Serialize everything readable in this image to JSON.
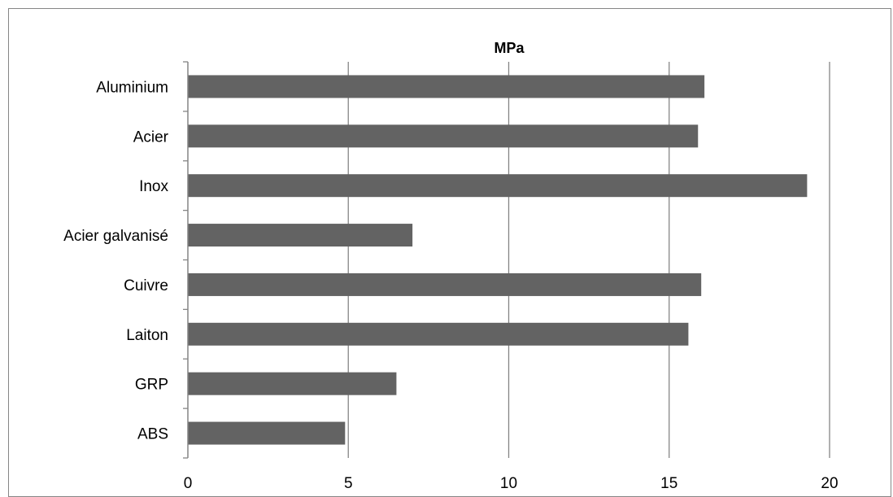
{
  "chart_data": {
    "type": "bar",
    "orientation": "horizontal",
    "title": "MPa",
    "xlabel": "",
    "ylabel": "",
    "categories": [
      "Aluminium",
      "Acier",
      "Inox",
      "Acier galvanisé",
      "Cuivre",
      "Laiton",
      "GRP",
      "ABS"
    ],
    "series": [
      {
        "values": [
          16.1,
          15.9,
          19.3,
          7.0,
          16.0,
          15.6,
          6.5,
          4.9
        ]
      }
    ],
    "xlim": [
      0,
      20
    ],
    "xticks": [
      "0",
      "5",
      "10",
      "15",
      "20"
    ],
    "grid": true,
    "legend": "none",
    "colors": {
      "bar": "#636363",
      "grid": "#868686",
      "axis": "#868686",
      "frame": "#868686"
    }
  }
}
